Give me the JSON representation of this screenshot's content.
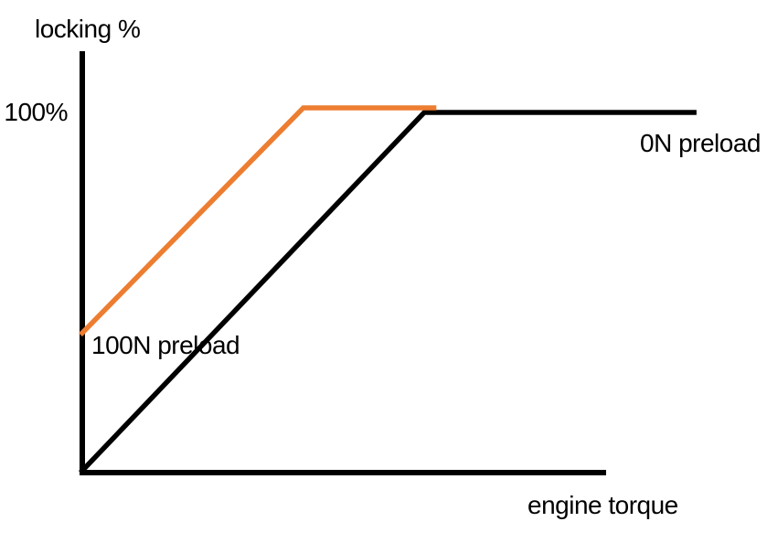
{
  "chart_data": {
    "type": "line",
    "title": "",
    "xlabel": "engine torque",
    "ylabel": "locking %",
    "x_axis": {
      "label": "engine torque",
      "tick_labels": [],
      "range_drawn": [
        0,
        1.0
      ]
    },
    "y_axis": {
      "label": "locking %",
      "tick_labels": [
        "100%"
      ],
      "range": [
        0,
        100
      ]
    },
    "grid": false,
    "legend_position": "inline-labels-next-to-lines",
    "series": [
      {
        "name": "0N preload",
        "color": "#000000",
        "points": [
          {
            "x": 0.0,
            "y": 0
          },
          {
            "x": 0.654,
            "y": 100
          },
          {
            "x": 1.172,
            "y": 100
          }
        ]
      },
      {
        "name": "100N preload",
        "color": "#ED7D31",
        "points": [
          {
            "x": 0.0,
            "y": 37
          },
          {
            "x": 0.424,
            "y": 100
          },
          {
            "x": 0.677,
            "y": 100
          }
        ]
      }
    ]
  },
  "colors": {
    "background": "#FFFFFF",
    "axis": "#000000",
    "text": "#000000",
    "series_0n_preload": "#000000",
    "series_100n_preload": "#ED7D31"
  }
}
